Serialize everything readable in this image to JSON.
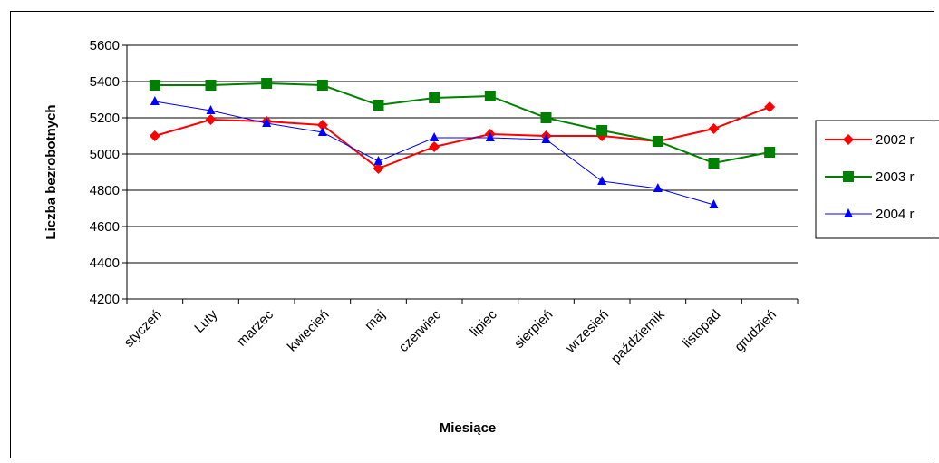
{
  "chart_data": {
    "type": "line",
    "title": "",
    "xlabel": "Miesiące",
    "ylabel": "Liczba bezrobotnych",
    "ylim": [
      4200,
      5600
    ],
    "yticks": [
      4200,
      4400,
      4600,
      4800,
      5000,
      5200,
      5400,
      5600
    ],
    "categories": [
      "styczeń",
      "Luty",
      "marzec",
      "kwiecień",
      "maj",
      "czerwiec",
      "lipiec",
      "sierpień",
      "wrzesień",
      "październik",
      "listopad",
      "grudzień"
    ],
    "grid": "horizontal",
    "legend_position": "right",
    "series": [
      {
        "name": "2002 r",
        "color": "#ff0000",
        "marker": "diamond",
        "values": [
          5100,
          5190,
          5180,
          5160,
          4920,
          5040,
          5110,
          5100,
          5100,
          5070,
          5140,
          5260
        ]
      },
      {
        "name": "2003 r",
        "color": "#008000",
        "marker": "square",
        "values": [
          5380,
          5380,
          5390,
          5380,
          5270,
          5310,
          5320,
          5200,
          5130,
          5070,
          4950,
          5010
        ]
      },
      {
        "name": "2004 r",
        "color": "#0000ff",
        "marker": "triangle",
        "values": [
          5290,
          5240,
          5170,
          5120,
          4960,
          5090,
          5090,
          5080,
          4850,
          4810,
          4720,
          null
        ]
      }
    ]
  }
}
